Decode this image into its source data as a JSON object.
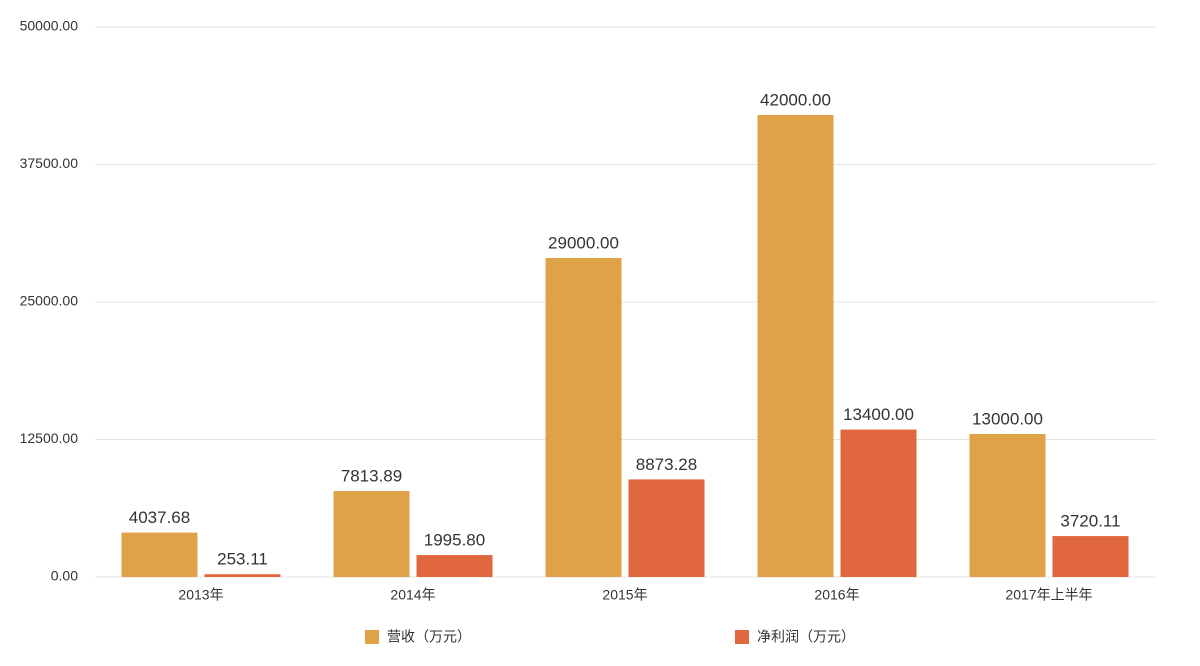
{
  "chart_data": {
    "type": "bar",
    "categories": [
      "2013年",
      "2014年",
      "2015年",
      "2016年",
      "2017年上半年"
    ],
    "series": [
      {
        "name": "营收（万元）",
        "color": "#e0a248",
        "values": [
          4037.68,
          7813.89,
          29000,
          42000,
          13000
        ],
        "value_labels": [
          "4037.68",
          "7813.89",
          "29000.00",
          "42000.00",
          "13000.00"
        ]
      },
      {
        "name": "净利润（万元）",
        "color": "#e0673e",
        "values": [
          253.11,
          1995.8,
          8873.28,
          13400,
          3720.11
        ],
        "value_labels": [
          "253.11",
          "1995.80",
          "8873.28",
          "13400.00",
          "3720.11"
        ]
      }
    ],
    "ylim": [
      0,
      50000
    ],
    "yticks": [
      {
        "value": 0,
        "label": "0.00"
      },
      {
        "value": 12500,
        "label": "12500.00"
      },
      {
        "value": 25000,
        "label": "25000.00"
      },
      {
        "value": 37500,
        "label": "37500.00"
      },
      {
        "value": 50000,
        "label": "50000.00"
      }
    ],
    "grid": true,
    "legend": "bottom"
  }
}
